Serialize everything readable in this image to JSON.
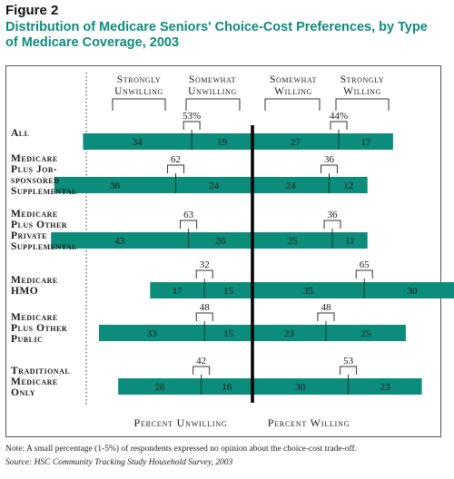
{
  "figure_label": "Figure 2",
  "title": "Distribution of Medicare Seniors' Choice-Cost Preferences, by Type of Medicare Coverage, 2003",
  "note": "Note: A small percentage (1-5%) of respondents expressed no opinion about the choice-cost trade-off.",
  "source": "Source: HSC Community Tracking Study Household Survey, 2003",
  "colors": {
    "bar": "#0c8c7a",
    "title": "#0c8c7a",
    "center": "#000000"
  },
  "chart_data": {
    "type": "bar",
    "orientation": "horizontal-diverging",
    "headers": [
      {
        "line1": "Strongly",
        "line2": "Unwilling"
      },
      {
        "line1": "Somewhat",
        "line2": "Unwilling"
      },
      {
        "line1": "Somewhat",
        "line2": "Willing"
      },
      {
        "line1": "Strongly",
        "line2": "Willing"
      }
    ],
    "axis_left": "Percent Unwilling",
    "axis_right": "Percent Willing",
    "groups": [
      {
        "label": [
          "All"
        ],
        "strongly_unwilling": 34,
        "somewhat_unwilling": 19,
        "somewhat_willing": 27,
        "strongly_willing": 17,
        "total_unwilling": "53%",
        "total_willing": "44%"
      },
      {
        "label": [
          "Medicare",
          "Plus Job-",
          "sponsored",
          "Supplemental"
        ],
        "strongly_unwilling": 38,
        "somewhat_unwilling": 24,
        "somewhat_willing": 24,
        "strongly_willing": 12,
        "total_unwilling": "62",
        "total_willing": "36"
      },
      {
        "label": [
          "Medicare",
          "Plus Other",
          "Private",
          "Supplemental"
        ],
        "strongly_unwilling": 43,
        "somewhat_unwilling": 20,
        "somewhat_willing": 25,
        "strongly_willing": 11,
        "total_unwilling": "63",
        "total_willing": "36"
      },
      {
        "label": [
          "Medicare",
          "HMO"
        ],
        "strongly_unwilling": 17,
        "somewhat_unwilling": 15,
        "somewhat_willing": 35,
        "strongly_willing": 30,
        "total_unwilling": "32",
        "total_willing": "65"
      },
      {
        "label": [
          "Medicare",
          "Plus Other",
          "Public"
        ],
        "strongly_unwilling": 33,
        "somewhat_unwilling": 15,
        "somewhat_willing": 23,
        "strongly_willing": 25,
        "total_unwilling": "48",
        "total_willing": "48"
      },
      {
        "label": [
          "Traditional",
          "Medicare",
          "Only"
        ],
        "strongly_unwilling": 26,
        "somewhat_unwilling": 16,
        "somewhat_willing": 30,
        "strongly_willing": 23,
        "total_unwilling": "42",
        "total_willing": "53"
      }
    ]
  }
}
